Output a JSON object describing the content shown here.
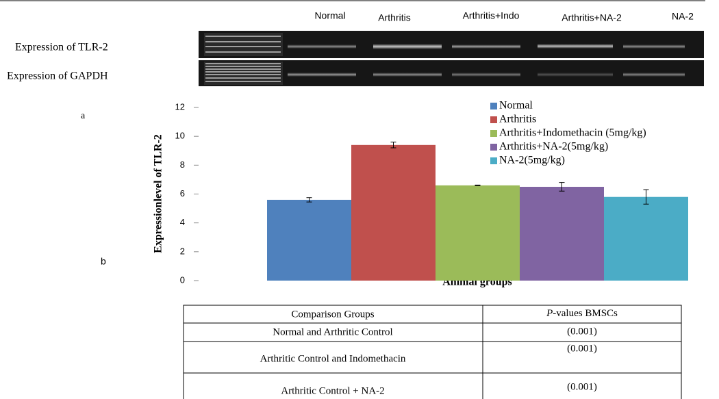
{
  "gel": {
    "lanes": [
      "Normal",
      "Arthritis",
      "Arthritis+Indo",
      "Arthritis+NA-2",
      "NA-2"
    ],
    "rows": [
      "Expression of  TLR-2",
      "Expression of GAPDH"
    ]
  },
  "panel_labels": [
    "a",
    "b"
  ],
  "chart_data": {
    "type": "bar",
    "ylabel": "Expressionlevel  of  TLR-2",
    "xlabel": "Animal groups",
    "ylim": [
      0,
      12
    ],
    "yticks": [
      0,
      2,
      4,
      6,
      8,
      10,
      12
    ],
    "legend": "top-right",
    "series": [
      {
        "name": "Normal",
        "color": "#4f81bd",
        "values": [
          5.6
        ],
        "errors": [
          0.15
        ]
      },
      {
        "name": "Arthritis",
        "color": "#c0504d",
        "values": [
          9.4
        ],
        "errors": [
          0.2
        ]
      },
      {
        "name": "Arthritis+Indomethacin (5mg/kg)",
        "color": "#9bbb59",
        "values": [
          6.6
        ],
        "errors": [
          0.02
        ]
      },
      {
        "name": "Arthritis+NA-2(5mg/kg)",
        "color": "#8064a2",
        "values": [
          6.5
        ],
        "errors": [
          0.3
        ]
      },
      {
        "name": "NA-2(5mg/kg)",
        "color": "#4bacc6",
        "values": [
          5.8
        ],
        "errors": [
          0.5
        ]
      }
    ]
  },
  "table": {
    "header": [
      "Comparison Groups",
      {
        "italic": "P",
        "text": "-values BMSCs"
      }
    ],
    "rows": [
      [
        "Normal  and  Arthritic Control",
        "(0.001)"
      ],
      [
        "Arthritic Control and Indomethacin",
        "(0.001)"
      ],
      [
        "Arthritic Control + NA-2",
        "(0.001)"
      ]
    ]
  }
}
